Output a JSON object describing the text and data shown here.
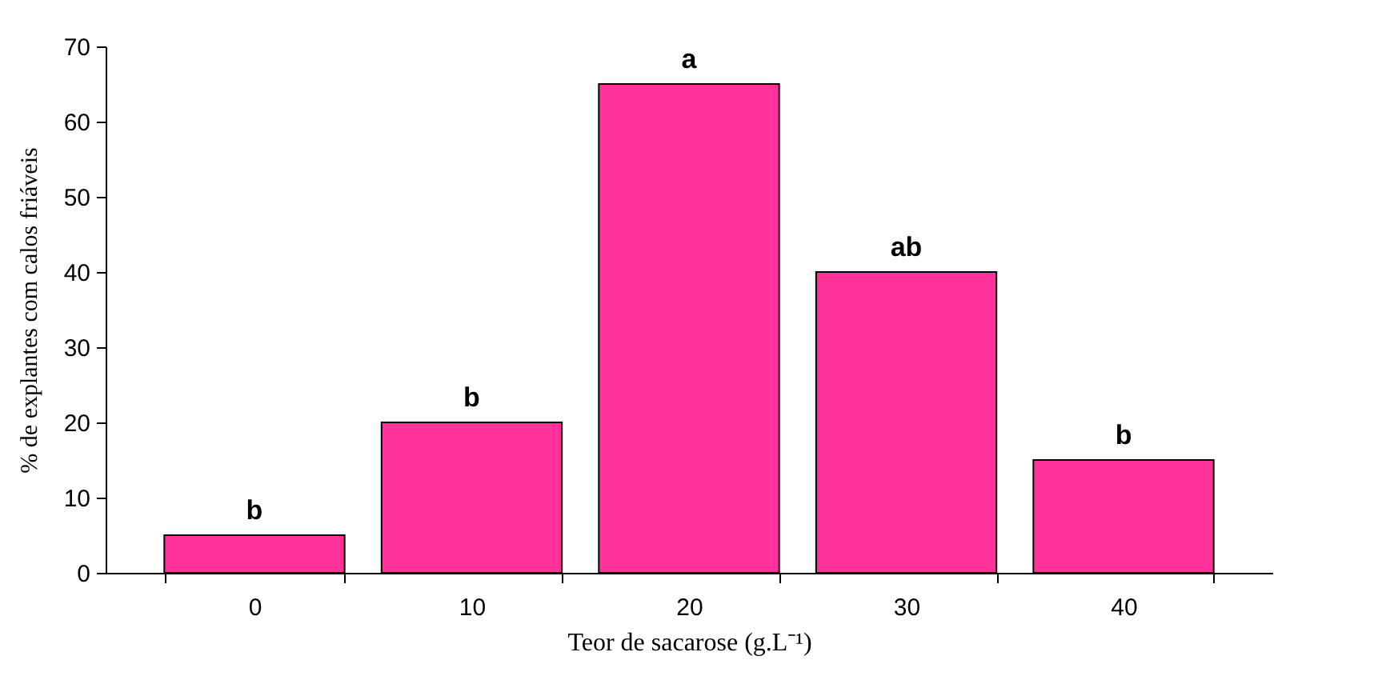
{
  "chart_data": {
    "type": "bar",
    "xlabel": "Teor de sacarose (g.L⁻¹)",
    "ylabel": "% de explantes com calos friáveis",
    "categories": [
      "0",
      "10",
      "20",
      "30",
      "40"
    ],
    "values": [
      5,
      20,
      65,
      40,
      15
    ],
    "color": "#ff3399",
    "value_labels": [
      "b",
      "b",
      "a",
      "ab",
      "b"
    ],
    "ylim": [
      0,
      70
    ],
    "yticks": [
      0,
      10,
      20,
      30,
      40,
      50,
      60,
      70
    ],
    "grid": false
  }
}
